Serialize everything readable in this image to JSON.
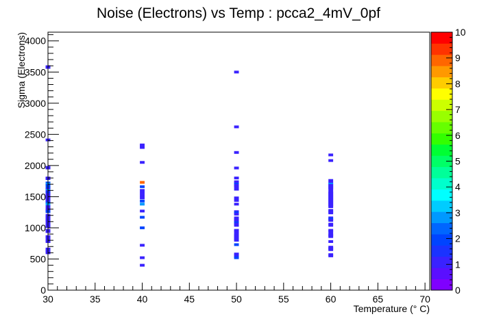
{
  "chart_data": {
    "type": "heatmap",
    "title": "Noise (Electrons) vs Temp : pcca2_4mV_0pf",
    "xlabel": "Temperature (° C)",
    "ylabel": "Sigma (Electrons)",
    "xlim": [
      30,
      70.5
    ],
    "ylim": [
      0,
      4140
    ],
    "xticks": [
      30,
      35,
      40,
      45,
      50,
      55,
      60,
      65,
      70
    ],
    "yticks": [
      0,
      500,
      1000,
      1500,
      2000,
      2500,
      3000,
      3500,
      4000
    ],
    "zlim": [
      0,
      10
    ],
    "zticks": [
      0,
      1,
      2,
      3,
      4,
      5,
      6,
      7,
      8,
      9,
      10
    ],
    "grid": false,
    "palette": [
      "#7f00ff",
      "#5a0fff",
      "#3a22ff",
      "#1a33ff",
      "#0044ff",
      "#0066ff",
      "#0099ff",
      "#00ccff",
      "#00ffff",
      "#00ffcc",
      "#00ff99",
      "#00ff66",
      "#00ff33",
      "#33ff00",
      "#66ff00",
      "#99ff00",
      "#ccff00",
      "#ffff00",
      "#ffcc00",
      "#ff9900",
      "#ff6600",
      "#ff3300",
      "#ff0000"
    ],
    "x_bin_width": 0.5,
    "y_bin_width": 20,
    "cells": [
      {
        "x": 30,
        "points": [
          [
            3585,
            1
          ],
          [
            3575,
            1
          ],
          [
            2410,
            1
          ],
          [
            1970,
            1
          ],
          [
            1960,
            1
          ],
          [
            1800,
            1
          ],
          [
            1790,
            1
          ],
          [
            1720,
            2
          ],
          [
            1700,
            3
          ],
          [
            1680,
            2
          ],
          [
            1640,
            2
          ],
          [
            1620,
            1
          ],
          [
            1600,
            3
          ],
          [
            1580,
            1
          ],
          [
            1560,
            2
          ],
          [
            1540,
            1
          ],
          [
            1520,
            1
          ],
          [
            1500,
            1
          ],
          [
            1480,
            1
          ],
          [
            1460,
            1
          ],
          [
            1440,
            1
          ],
          [
            1420,
            1
          ],
          [
            1400,
            2
          ],
          [
            1380,
            3
          ],
          [
            1340,
            1
          ],
          [
            1300,
            1
          ],
          [
            1280,
            1
          ],
          [
            1260,
            2
          ],
          [
            1200,
            1
          ],
          [
            1180,
            1
          ],
          [
            1160,
            1
          ],
          [
            1140,
            1
          ],
          [
            1120,
            1
          ],
          [
            1100,
            1
          ],
          [
            1060,
            1
          ],
          [
            1040,
            1
          ],
          [
            1020,
            1
          ],
          [
            960,
            1
          ],
          [
            940,
            1
          ],
          [
            860,
            1
          ],
          [
            840,
            1
          ],
          [
            800,
            1
          ],
          [
            780,
            1
          ],
          [
            660,
            1
          ],
          [
            640,
            1
          ],
          [
            620,
            1
          ],
          [
            600,
            1
          ]
        ]
      },
      {
        "x": 40,
        "points": [
          [
            2330,
            1
          ],
          [
            2310,
            1
          ],
          [
            2290,
            1
          ],
          [
            2050,
            1
          ],
          [
            1730,
            9
          ],
          [
            1660,
            2
          ],
          [
            1600,
            1
          ],
          [
            1560,
            1
          ],
          [
            1520,
            1
          ],
          [
            1480,
            1
          ],
          [
            1430,
            2
          ],
          [
            1380,
            3
          ],
          [
            1270,
            1
          ],
          [
            1170,
            2
          ],
          [
            1000,
            2
          ],
          [
            720,
            1
          ],
          [
            520,
            1
          ],
          [
            400,
            1
          ]
        ]
      },
      {
        "x": 50,
        "points": [
          [
            3500,
            1
          ],
          [
            2620,
            1
          ],
          [
            2210,
            1
          ],
          [
            1960,
            1
          ],
          [
            1800,
            1
          ],
          [
            1740,
            1
          ],
          [
            1720,
            1
          ],
          [
            1700,
            2
          ],
          [
            1680,
            1
          ],
          [
            1660,
            1
          ],
          [
            1620,
            1
          ],
          [
            1480,
            1
          ],
          [
            1440,
            1
          ],
          [
            1380,
            1
          ],
          [
            1260,
            1
          ],
          [
            1240,
            2
          ],
          [
            1220,
            1
          ],
          [
            1160,
            1
          ],
          [
            1140,
            1
          ],
          [
            1120,
            1
          ],
          [
            1100,
            1
          ],
          [
            1080,
            2
          ],
          [
            1060,
            1
          ],
          [
            1040,
            1
          ],
          [
            960,
            1
          ],
          [
            940,
            1
          ],
          [
            900,
            1
          ],
          [
            880,
            1
          ],
          [
            860,
            1
          ],
          [
            840,
            1
          ],
          [
            820,
            1
          ],
          [
            800,
            1
          ],
          [
            730,
            2
          ],
          [
            580,
            1
          ],
          [
            560,
            1
          ],
          [
            540,
            1
          ],
          [
            520,
            2
          ]
        ]
      },
      {
        "x": 60,
        "points": [
          [
            2170,
            1
          ],
          [
            2080,
            1
          ],
          [
            1760,
            1
          ],
          [
            1720,
            1
          ],
          [
            1700,
            3
          ],
          [
            1680,
            1
          ],
          [
            1660,
            1
          ],
          [
            1640,
            1
          ],
          [
            1620,
            1
          ],
          [
            1580,
            1
          ],
          [
            1560,
            1
          ],
          [
            1540,
            1
          ],
          [
            1520,
            1
          ],
          [
            1500,
            1
          ],
          [
            1480,
            1
          ],
          [
            1460,
            1
          ],
          [
            1440,
            1
          ],
          [
            1420,
            1
          ],
          [
            1400,
            1
          ],
          [
            1380,
            1
          ],
          [
            1360,
            1
          ],
          [
            1340,
            1
          ],
          [
            1280,
            1
          ],
          [
            1260,
            1
          ],
          [
            1240,
            1
          ],
          [
            1160,
            1
          ],
          [
            1140,
            2
          ],
          [
            1120,
            1
          ],
          [
            1060,
            1
          ],
          [
            1040,
            1
          ],
          [
            960,
            1
          ],
          [
            940,
            1
          ],
          [
            900,
            1
          ],
          [
            880,
            1
          ],
          [
            860,
            1
          ],
          [
            780,
            1
          ],
          [
            690,
            1
          ],
          [
            670,
            1
          ],
          [
            650,
            1
          ],
          [
            570,
            1
          ],
          [
            550,
            1
          ]
        ]
      }
    ]
  }
}
